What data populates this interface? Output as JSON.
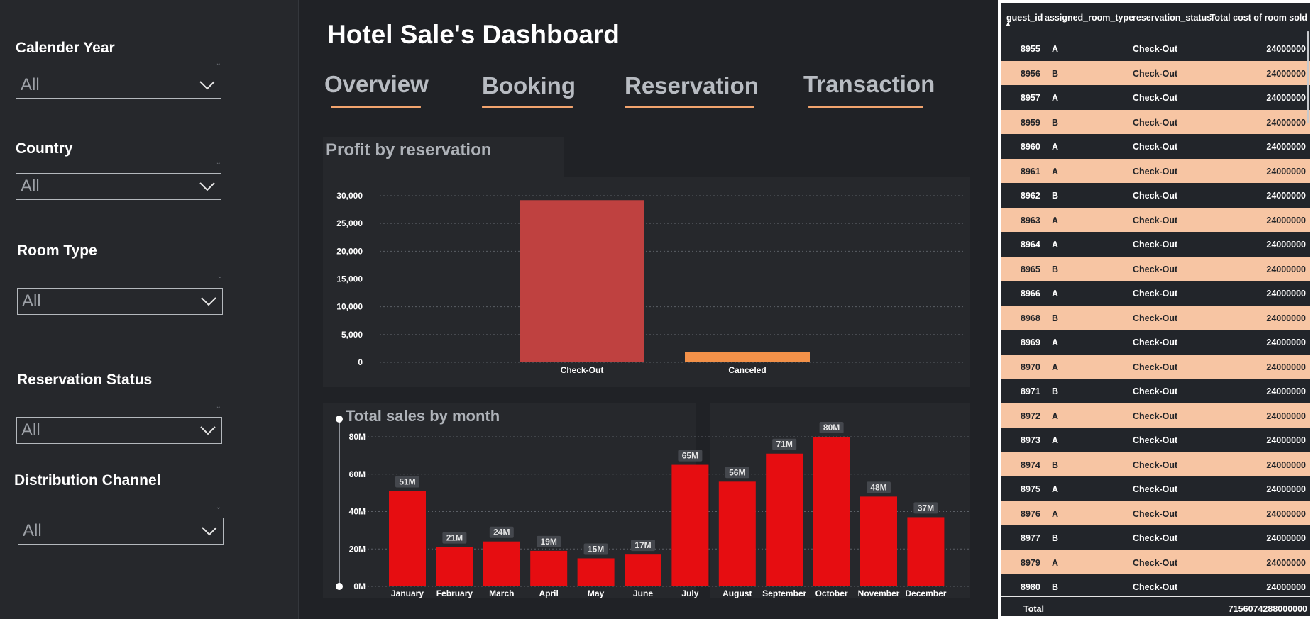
{
  "dashboard_title": "Hotel Sale's Dashboard",
  "filters": [
    {
      "label": "Calender Year",
      "value": "All"
    },
    {
      "label": "Country",
      "value": "All"
    },
    {
      "label": "Room Type",
      "value": "All"
    },
    {
      "label": "Reservation Status",
      "value": "All"
    },
    {
      "label": "Distribution Channel",
      "value": "All"
    }
  ],
  "tabs": [
    "Overview",
    "Booking",
    "Reservation",
    "Transaction"
  ],
  "colors": {
    "accent": "#f2a46e",
    "checkout_bar": "#bf4140",
    "canceled_bar": "#f39149",
    "month_bar": "#e60d11",
    "row_light": "#f7c5a3"
  },
  "profit_chart": {
    "title": "Profit by reservation",
    "chart_data": {
      "type": "bar",
      "categories": [
        "Check-Out",
        "Canceled"
      ],
      "values": [
        29200,
        1900
      ],
      "ylim": [
        0,
        30000
      ],
      "yticks": [
        "30,000",
        "25,000",
        "20,000",
        "15,000",
        "10,000",
        "5,000",
        "0"
      ],
      "grid": true
    }
  },
  "sales_chart": {
    "title": "Total sales by month",
    "chart_data": {
      "type": "bar",
      "categories": [
        "January",
        "February",
        "March",
        "April",
        "May",
        "June",
        "July",
        "August",
        "September",
        "October",
        "November",
        "December"
      ],
      "values": [
        51,
        21,
        24,
        19,
        15,
        17,
        65,
        56,
        71,
        80,
        48,
        37
      ],
      "data_labels": [
        "51M",
        "21M",
        "24M",
        "19M",
        "15M",
        "17M",
        "65M",
        "56M",
        "71M",
        "80M",
        "48M",
        "37M"
      ],
      "ylim": [
        0,
        80
      ],
      "yticks": [
        "80M",
        "60M",
        "40M",
        "20M",
        "0M"
      ],
      "grid": true
    }
  },
  "table": {
    "columns": [
      "guest_id",
      "assigned_room_type",
      "reservation_status",
      "Total cost of room sold"
    ],
    "rows": [
      [
        "8955",
        "A",
        "Check-Out",
        "24000000"
      ],
      [
        "8956",
        "B",
        "Check-Out",
        "24000000"
      ],
      [
        "8957",
        "A",
        "Check-Out",
        "24000000"
      ],
      [
        "8959",
        "B",
        "Check-Out",
        "24000000"
      ],
      [
        "8960",
        "A",
        "Check-Out",
        "24000000"
      ],
      [
        "8961",
        "A",
        "Check-Out",
        "24000000"
      ],
      [
        "8962",
        "B",
        "Check-Out",
        "24000000"
      ],
      [
        "8963",
        "A",
        "Check-Out",
        "24000000"
      ],
      [
        "8964",
        "A",
        "Check-Out",
        "24000000"
      ],
      [
        "8965",
        "B",
        "Check-Out",
        "24000000"
      ],
      [
        "8966",
        "A",
        "Check-Out",
        "24000000"
      ],
      [
        "8968",
        "B",
        "Check-Out",
        "24000000"
      ],
      [
        "8969",
        "A",
        "Check-Out",
        "24000000"
      ],
      [
        "8970",
        "A",
        "Check-Out",
        "24000000"
      ],
      [
        "8971",
        "B",
        "Check-Out",
        "24000000"
      ],
      [
        "8972",
        "A",
        "Check-Out",
        "24000000"
      ],
      [
        "8973",
        "A",
        "Check-Out",
        "24000000"
      ],
      [
        "8974",
        "B",
        "Check-Out",
        "24000000"
      ],
      [
        "8975",
        "A",
        "Check-Out",
        "24000000"
      ],
      [
        "8976",
        "A",
        "Check-Out",
        "24000000"
      ],
      [
        "8977",
        "B",
        "Check-Out",
        "24000000"
      ],
      [
        "8979",
        "A",
        "Check-Out",
        "24000000"
      ],
      [
        "8980",
        "B",
        "Check-Out",
        "24000000"
      ]
    ],
    "total_label": "Total",
    "total_value": "7156074288000000"
  }
}
